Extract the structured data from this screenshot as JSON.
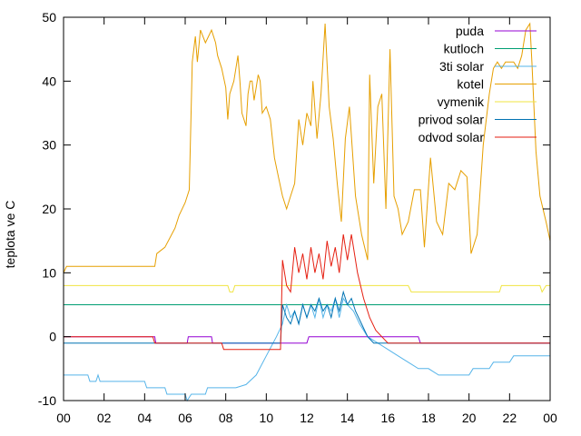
{
  "chart_data": {
    "type": "line",
    "title": "",
    "xlabel": "",
    "ylabel": "teplota ve C",
    "xlim": [
      0,
      24
    ],
    "ylim": [
      -10,
      50
    ],
    "x_ticks": [
      "00",
      "02",
      "04",
      "06",
      "08",
      "10",
      "12",
      "14",
      "16",
      "18",
      "20",
      "22",
      "00"
    ],
    "y_ticks": [
      -10,
      0,
      10,
      20,
      30,
      40,
      50
    ],
    "legend_position": "top-right",
    "grid": false,
    "series": [
      {
        "name": "puda",
        "color": "#9400d3",
        "points": [
          [
            0,
            0
          ],
          [
            4.5,
            0
          ],
          [
            4.55,
            -1
          ],
          [
            6.1,
            -1
          ],
          [
            6.15,
            0
          ],
          [
            7.3,
            0
          ],
          [
            7.35,
            -1
          ],
          [
            12.0,
            -1
          ],
          [
            12.1,
            0
          ],
          [
            17.5,
            0
          ],
          [
            17.6,
            -1
          ],
          [
            24,
            -1
          ]
        ]
      },
      {
        "name": "kutloch",
        "color": "#009e73",
        "points": [
          [
            0,
            5
          ],
          [
            24,
            5
          ]
        ]
      },
      {
        "name": "3ti solar",
        "color": "#56b4e9",
        "points": [
          [
            0,
            -6
          ],
          [
            1.2,
            -6
          ],
          [
            1.3,
            -7
          ],
          [
            1.6,
            -7
          ],
          [
            1.7,
            -6
          ],
          [
            1.8,
            -7
          ],
          [
            4.0,
            -7
          ],
          [
            4.1,
            -8
          ],
          [
            5.0,
            -8
          ],
          [
            5.1,
            -9
          ],
          [
            6.0,
            -9
          ],
          [
            6.1,
            -10
          ],
          [
            6.3,
            -9
          ],
          [
            7.0,
            -9
          ],
          [
            7.1,
            -8
          ],
          [
            8.5,
            -8
          ],
          [
            9.0,
            -7.5
          ],
          [
            9.5,
            -6
          ],
          [
            10.0,
            -3
          ],
          [
            10.5,
            0
          ],
          [
            10.8,
            2
          ],
          [
            11.0,
            5
          ],
          [
            11.2,
            3
          ],
          [
            11.4,
            4
          ],
          [
            11.6,
            2
          ],
          [
            11.8,
            5
          ],
          [
            12.0,
            3
          ],
          [
            12.2,
            5
          ],
          [
            12.4,
            3
          ],
          [
            12.6,
            6
          ],
          [
            12.8,
            3
          ],
          [
            13.0,
            5
          ],
          [
            13.2,
            4
          ],
          [
            13.4,
            6
          ],
          [
            13.6,
            3
          ],
          [
            13.8,
            6
          ],
          [
            14.0,
            5
          ],
          [
            14.3,
            4
          ],
          [
            14.6,
            2
          ],
          [
            15.0,
            0
          ],
          [
            15.5,
            -1
          ],
          [
            16.0,
            -2
          ],
          [
            16.5,
            -3
          ],
          [
            17.0,
            -4
          ],
          [
            17.5,
            -5
          ],
          [
            18.0,
            -5
          ],
          [
            18.5,
            -6
          ],
          [
            20.0,
            -6
          ],
          [
            20.2,
            -5
          ],
          [
            21.0,
            -5
          ],
          [
            21.2,
            -4
          ],
          [
            22.0,
            -4
          ],
          [
            22.2,
            -3
          ],
          [
            24,
            -3
          ]
        ]
      },
      {
        "name": "kotel",
        "color": "#e69f00",
        "points": [
          [
            0,
            10
          ],
          [
            0.15,
            11
          ],
          [
            4.5,
            11
          ],
          [
            4.6,
            13
          ],
          [
            5.0,
            14
          ],
          [
            5.5,
            17
          ],
          [
            5.7,
            19
          ],
          [
            6.0,
            21
          ],
          [
            6.2,
            23
          ],
          [
            6.35,
            43
          ],
          [
            6.5,
            47
          ],
          [
            6.6,
            43
          ],
          [
            6.75,
            48
          ],
          [
            7.0,
            46
          ],
          [
            7.3,
            48
          ],
          [
            7.5,
            46
          ],
          [
            7.6,
            44
          ],
          [
            7.8,
            42
          ],
          [
            8.0,
            39
          ],
          [
            8.1,
            34
          ],
          [
            8.2,
            38
          ],
          [
            8.4,
            40
          ],
          [
            8.6,
            44
          ],
          [
            8.7,
            40
          ],
          [
            8.8,
            35
          ],
          [
            9.0,
            33
          ],
          [
            9.1,
            38
          ],
          [
            9.2,
            40
          ],
          [
            9.3,
            40
          ],
          [
            9.4,
            37
          ],
          [
            9.5,
            39
          ],
          [
            9.6,
            41
          ],
          [
            9.7,
            40
          ],
          [
            9.8,
            35
          ],
          [
            10.0,
            36
          ],
          [
            10.2,
            34
          ],
          [
            10.4,
            28
          ],
          [
            10.6,
            25
          ],
          [
            10.8,
            22
          ],
          [
            11.0,
            20
          ],
          [
            11.2,
            22
          ],
          [
            11.4,
            24
          ],
          [
            11.6,
            34
          ],
          [
            11.8,
            30
          ],
          [
            12.0,
            35
          ],
          [
            12.2,
            33
          ],
          [
            12.3,
            40
          ],
          [
            12.5,
            31
          ],
          [
            12.7,
            38
          ],
          [
            12.9,
            49
          ],
          [
            13.1,
            36
          ],
          [
            13.3,
            31
          ],
          [
            13.5,
            24
          ],
          [
            13.7,
            18
          ],
          [
            13.9,
            31
          ],
          [
            14.1,
            36
          ],
          [
            14.4,
            22
          ],
          [
            14.7,
            16
          ],
          [
            15.0,
            12
          ],
          [
            15.1,
            41
          ],
          [
            15.3,
            24
          ],
          [
            15.5,
            36
          ],
          [
            15.7,
            38
          ],
          [
            15.9,
            20
          ],
          [
            16.1,
            45
          ],
          [
            16.3,
            22
          ],
          [
            16.5,
            20
          ],
          [
            16.7,
            16
          ],
          [
            17.0,
            18
          ],
          [
            17.3,
            23
          ],
          [
            17.6,
            23
          ],
          [
            17.8,
            14
          ],
          [
            18.1,
            28
          ],
          [
            18.4,
            18
          ],
          [
            18.7,
            16
          ],
          [
            19.0,
            24
          ],
          [
            19.3,
            23
          ],
          [
            19.6,
            26
          ],
          [
            19.9,
            25
          ],
          [
            20.1,
            13
          ],
          [
            20.4,
            16
          ],
          [
            20.7,
            30
          ],
          [
            21.0,
            38
          ],
          [
            21.2,
            42
          ],
          [
            21.4,
            43
          ],
          [
            21.6,
            42
          ],
          [
            21.8,
            43
          ],
          [
            22.0,
            43
          ],
          [
            22.2,
            43
          ],
          [
            22.4,
            42
          ],
          [
            22.6,
            44
          ],
          [
            22.8,
            48
          ],
          [
            23.0,
            49
          ],
          [
            23.1,
            43
          ],
          [
            23.3,
            29
          ],
          [
            23.5,
            22
          ],
          [
            23.8,
            18
          ],
          [
            24,
            15
          ]
        ]
      },
      {
        "name": "vymenik",
        "color": "#f0e442",
        "points": [
          [
            0,
            8
          ],
          [
            8.1,
            8
          ],
          [
            8.2,
            7
          ],
          [
            8.35,
            7
          ],
          [
            8.45,
            8
          ],
          [
            17.0,
            8
          ],
          [
            17.15,
            7
          ],
          [
            21.5,
            7
          ],
          [
            21.6,
            8
          ],
          [
            23.5,
            8
          ],
          [
            23.6,
            7
          ],
          [
            23.8,
            8
          ],
          [
            24,
            8
          ]
        ]
      },
      {
        "name": "privod solar",
        "color": "#0072b2",
        "points": [
          [
            0,
            -1
          ],
          [
            10.5,
            -1
          ],
          [
            10.7,
            -1
          ],
          [
            10.8,
            5
          ],
          [
            11.0,
            3
          ],
          [
            11.2,
            2
          ],
          [
            11.4,
            4
          ],
          [
            11.6,
            2
          ],
          [
            11.8,
            5
          ],
          [
            12.0,
            3
          ],
          [
            12.2,
            5
          ],
          [
            12.4,
            4
          ],
          [
            12.6,
            6
          ],
          [
            12.8,
            4
          ],
          [
            13.0,
            5
          ],
          [
            13.2,
            3
          ],
          [
            13.4,
            6
          ],
          [
            13.6,
            4
          ],
          [
            13.8,
            7
          ],
          [
            14.0,
            5
          ],
          [
            14.2,
            6
          ],
          [
            14.4,
            4
          ],
          [
            14.7,
            2
          ],
          [
            15.0,
            0
          ],
          [
            15.3,
            -1
          ],
          [
            17.8,
            -1
          ],
          [
            24,
            -1
          ]
        ]
      },
      {
        "name": "odvod solar",
        "color": "#e51e10",
        "points": [
          [
            0,
            0
          ],
          [
            4.4,
            0
          ],
          [
            4.5,
            -1
          ],
          [
            7.8,
            -1
          ],
          [
            7.9,
            -2
          ],
          [
            10.5,
            -2
          ],
          [
            10.7,
            -2
          ],
          [
            10.8,
            12
          ],
          [
            11.0,
            8
          ],
          [
            11.2,
            7
          ],
          [
            11.4,
            14
          ],
          [
            11.6,
            10
          ],
          [
            11.8,
            13
          ],
          [
            12.0,
            9
          ],
          [
            12.2,
            14
          ],
          [
            12.4,
            10
          ],
          [
            12.6,
            13
          ],
          [
            12.8,
            9
          ],
          [
            13.0,
            15
          ],
          [
            13.2,
            11
          ],
          [
            13.4,
            14
          ],
          [
            13.6,
            10
          ],
          [
            13.8,
            16
          ],
          [
            14.0,
            12
          ],
          [
            14.2,
            16
          ],
          [
            14.5,
            10
          ],
          [
            14.8,
            6
          ],
          [
            15.1,
            3
          ],
          [
            15.4,
            1
          ],
          [
            15.7,
            0
          ],
          [
            16.0,
            -1
          ],
          [
            17.8,
            -1
          ],
          [
            24,
            -1
          ]
        ]
      }
    ]
  }
}
